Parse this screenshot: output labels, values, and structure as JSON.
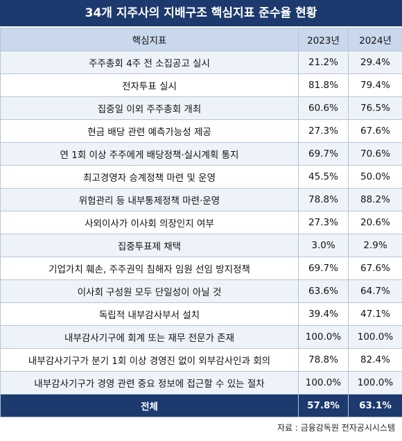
{
  "title": "34개 지주사의 지배구조 핵심지표 준수율 현황",
  "table": {
    "header": [
      "핵심지표",
      "2023년",
      "2024년"
    ],
    "rows": [
      [
        "주주총회 4주 전 소집공고 실시",
        "21.2%",
        "29.4%"
      ],
      [
        "전자투표 실시",
        "81.8%",
        "79.4%"
      ],
      [
        "집중일 이외 주주총회 개최",
        "60.6%",
        "76.5%"
      ],
      [
        "현금 배당 관련 예측가능성 제공",
        "27.3%",
        "67.6%"
      ],
      [
        "연 1회 이상 주주에게 배당정책·실시계획 통지",
        "69.7%",
        "70.6%"
      ],
      [
        "최고경영자 승계정책 마련 및 운영",
        "45.5%",
        "50.0%"
      ],
      [
        "위험관리 등 내부통제정책 마련·운영",
        "78.8%",
        "88.2%"
      ],
      [
        "사외이사가 이사회 의장인지 여부",
        "27.3%",
        "20.6%"
      ],
      [
        "집중투표제 채택",
        "3.0%",
        "2.9%"
      ],
      [
        "기업가치 훼손, 주주권익 침해자 임원 선임 방지정책",
        "69.7%",
        "67.6%"
      ],
      [
        "이사회 구성원 모두 단일성이 아닐 것",
        "63.6%",
        "64.7%"
      ],
      [
        "독립적 내부감사부서 설치",
        "39.4%",
        "47.1%"
      ],
      [
        "내부감사기구에 회계 또는 재무 전문가 존재",
        "100.0%",
        "100.0%"
      ],
      [
        "내부감사기구가 분기 1회 이상 경영진 없이 외부감사인과 회의",
        "78.8%",
        "82.4%"
      ],
      [
        "내부감사기구가 경영 관련 중요 정보에 접근할 수 있는 절차",
        "100.0%",
        "100.0%"
      ]
    ],
    "total": [
      "전체",
      "57.8%",
      "63.1%"
    ]
  },
  "source": "자료 : 금융감독원 전자공시시스템"
}
